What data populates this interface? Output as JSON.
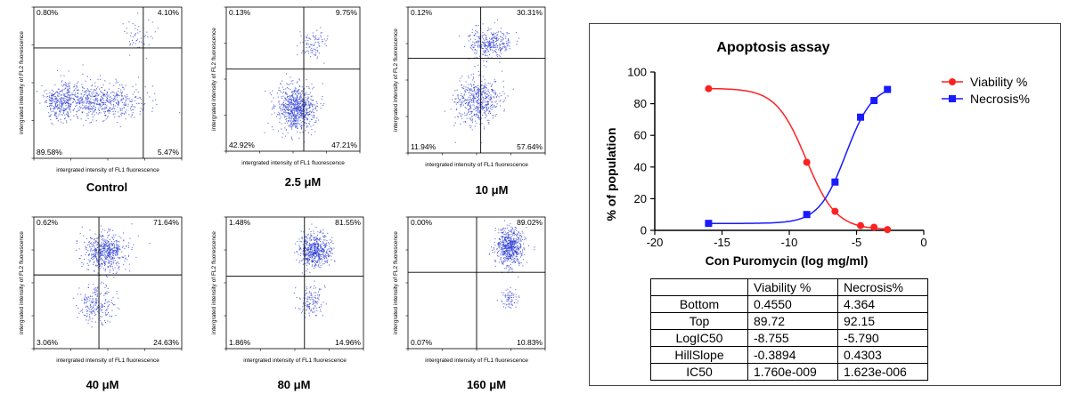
{
  "flow_panels": [
    {
      "caption": "Control",
      "ul": "0.80%",
      "ur": "4.10%",
      "ll": "89.58%",
      "lr": "5.47%",
      "xlabel": "intergrated intensity of FL1 fluorescence",
      "ylabel": "intergrated intensity of FL2 fluorescence"
    },
    {
      "caption": "2.5 μM",
      "ul": "0.13%",
      "ur": "9.75%",
      "ll": "42.92%",
      "lr": "47.21%",
      "xlabel": "intergrated intensity of FL1 fluorescence",
      "ylabel": "intergrated intensity of FL2 fluorescence"
    },
    {
      "caption": "10 μM",
      "ul": "0.12%",
      "ur": "30.31%",
      "ll": "11.94%",
      "lr": "57.64%",
      "xlabel": "intergrated intensity of FL1 fluorescence",
      "ylabel": "intergrated intensity of FL2 fluorescence"
    },
    {
      "caption": "40 μM",
      "ul": "0.62%",
      "ur": "71.64%",
      "ll": "3.06%",
      "lr": "24.63%",
      "xlabel": "intergrated intensity of FL1 fluorescence",
      "ylabel": "intergrated intensity of FL2 fluorescence"
    },
    {
      "caption": "80 μM",
      "ul": "1.48%",
      "ur": "81.55%",
      "ll": "1.86%",
      "lr": "14.96%",
      "xlabel": "intergrated intensity of FL1 fluorescence",
      "ylabel": "intergrated intensity of FL2 fluorescence"
    },
    {
      "caption": "160 μM",
      "ul": "0.00%",
      "ur": "89.02%",
      "ll": "0.07%",
      "lr": "10.83%",
      "xlabel": "intergrated intensity of FL1 fluorescence",
      "ylabel": "intergrated intensity of FL2 fluorescence"
    }
  ],
  "chart_data": [
    {
      "type": "scatter",
      "subtype": "flow-cytometry-quadrant",
      "panels": [
        "Control",
        "2.5 μM",
        "10 μM",
        "40 μM",
        "80 μM",
        "160 μM"
      ],
      "quadrants": [
        "upper-left",
        "upper-right",
        "lower-left",
        "lower-right"
      ],
      "quadrant_percent": [
        [
          0.8,
          4.1,
          89.58,
          5.47
        ],
        [
          0.13,
          9.75,
          42.92,
          47.21
        ],
        [
          0.12,
          30.31,
          11.94,
          57.64
        ],
        [
          0.62,
          71.64,
          3.06,
          24.63
        ],
        [
          1.48,
          81.55,
          1.86,
          14.96
        ],
        [
          0.0,
          89.02,
          0.07,
          10.83
        ]
      ],
      "xlabel": "intergrated intensity of FL1 fluorescence",
      "ylabel": "intergrated intensity of FL2 fluorescence",
      "axis_scale": "log",
      "point_color": "#2b3bd6"
    },
    {
      "type": "line",
      "title": "Apoptosis assay",
      "xlabel": "Con Puromycin (log mg/ml)",
      "ylabel": "% of population",
      "xlim": [
        -20,
        0
      ],
      "ylim": [
        0,
        100
      ],
      "x_ticks": [
        "-20",
        "-15",
        "-10",
        "-5",
        "0"
      ],
      "y_ticks": [
        "0",
        "20",
        "40",
        "60",
        "80",
        "100"
      ],
      "legend_position": "top-right",
      "series": [
        {
          "name": "Viability %",
          "color": "#ff2020",
          "marker": "circle",
          "x": [
            -16,
            -8.7,
            -6.6,
            -4.7,
            -3.7,
            -2.7
          ],
          "y": [
            89.5,
            43,
            12,
            3,
            2,
            0.5
          ],
          "fit": {
            "bottom": 0.455,
            "top": 89.72,
            "logic50": -8.755,
            "hillslope": -0.3894
          }
        },
        {
          "name": "Necrosis%",
          "color": "#1a1aff",
          "marker": "square",
          "x": [
            -16,
            -8.7,
            -6.6,
            -4.7,
            -3.7,
            -2.7
          ],
          "y": [
            4.4,
            10,
            30.5,
            71.5,
            82,
            89
          ],
          "fit": {
            "bottom": 4.364,
            "top": 92.15,
            "logic50": -5.79,
            "hillslope": 0.4303
          }
        }
      ]
    },
    {
      "type": "table",
      "columns": [
        "",
        "Viability %",
        "Necrosis%"
      ],
      "rows": [
        [
          "Bottom",
          "0.4550",
          "4.364"
        ],
        [
          "Top",
          "89.72",
          "92.15"
        ],
        [
          "LogIC50",
          "-8.755",
          "-5.790"
        ],
        [
          "HillSlope",
          "-0.3894",
          "0.4303"
        ],
        [
          "IC50",
          "1.760e-009",
          "1.623e-006"
        ]
      ]
    }
  ]
}
